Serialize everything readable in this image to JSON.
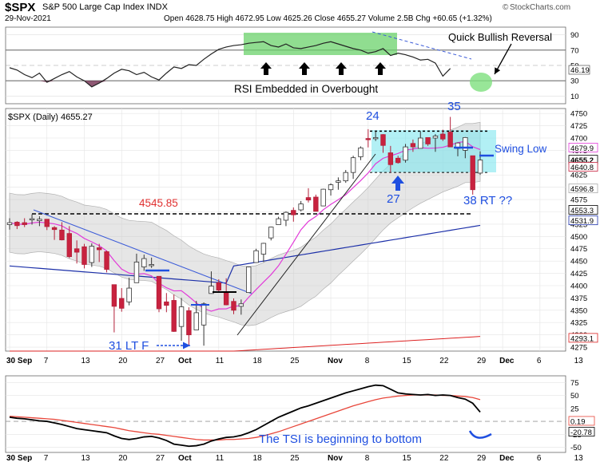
{
  "header": {
    "ticker": "$SPX",
    "name": "S&P 500 Large Cap Index INDX",
    "date": "29-Nov-2021",
    "ohlc": "Open 4628.75  High 4672.95  Low 4625.26  Close 4655.27  Volume 2.5B  Chg +60.65 (+1.32%)",
    "brand": "StockCharts.com",
    "brand_icon": "©"
  },
  "chart_data": [
    {
      "type": "line",
      "panel": "rsi",
      "ylim": [
        0,
        100
      ],
      "yticks": [
        10,
        30,
        50,
        70,
        90
      ],
      "value_box": "46.19",
      "annotations": [
        "RSI Embedded in Overbought",
        "Quick Bullish Reversal"
      ],
      "series": [
        {
          "values": [
            47,
            44,
            38,
            34,
            40,
            28,
            33,
            38,
            42,
            35,
            30,
            22,
            27,
            33,
            40,
            45,
            43,
            38,
            41,
            35,
            31,
            40,
            48,
            46,
            51,
            50,
            58,
            65,
            71,
            74,
            76,
            77,
            79,
            80,
            81,
            76,
            74,
            78,
            73,
            72,
            74,
            76,
            79,
            81,
            78,
            75,
            72,
            70,
            66,
            68,
            72,
            63,
            66,
            64,
            61,
            57,
            58,
            53,
            36,
            46
          ]
        }
      ]
    },
    {
      "type": "candlestick",
      "panel": "price",
      "legend": "$SPX (Daily) 4655.27",
      "ylim": [
        4267,
        4760
      ],
      "yticks": [
        4275,
        4300,
        4325,
        4350,
        4375,
        4400,
        4425,
        4450,
        4475,
        4500,
        4525,
        4550,
        4575,
        4600,
        4625,
        4650,
        4675,
        4700,
        4725,
        4750
      ],
      "x_labels": [
        "30 Sep",
        "7",
        "13",
        "20",
        "27",
        "Oct",
        "11",
        "18",
        "25",
        "Nov",
        "8",
        "15",
        "22",
        "29",
        "Dec",
        "6",
        "13"
      ],
      "value_boxes": [
        "4679.9",
        "4655.2",
        "4640.8",
        "4596.8",
        "4553.3",
        "4531.9",
        "4293.1"
      ],
      "annotations": [
        "4545.85",
        "24",
        "35",
        "27",
        "38 RT ??",
        "31 LT F",
        "Swing Low"
      ],
      "levels": {
        "resistance": 4545.85,
        "range_top": 4714,
        "range_bottom": 4630
      },
      "candles": [
        {
          "d": "Aug 30",
          "o": 4524,
          "h": 4537,
          "l": 4514,
          "c": 4528
        },
        {
          "d": "Aug 31",
          "o": 4529,
          "h": 4531,
          "l": 4515,
          "c": 4522
        },
        {
          "d": "Sep 1",
          "o": 4528,
          "h": 4537,
          "l": 4519,
          "c": 4524
        },
        {
          "d": "Sep 2",
          "o": 4534,
          "h": 4545,
          "l": 4524,
          "c": 4536
        },
        {
          "d": "Sep 3",
          "o": 4532,
          "h": 4541,
          "l": 4521,
          "c": 4535
        },
        {
          "d": "Sep 7",
          "o": 4535,
          "h": 4535,
          "l": 4513,
          "c": 4520
        },
        {
          "d": "Sep 8",
          "o": 4518,
          "h": 4521,
          "l": 4493,
          "c": 4514
        },
        {
          "d": "Sep 9",
          "o": 4513,
          "h": 4529,
          "l": 4492,
          "c": 4493
        },
        {
          "d": "Sep 10",
          "o": 4506,
          "h": 4521,
          "l": 4456,
          "c": 4459
        },
        {
          "d": "Sep 13",
          "o": 4475,
          "h": 4492,
          "l": 4445,
          "c": 4468
        },
        {
          "d": "Sep 14",
          "o": 4479,
          "h": 4485,
          "l": 4435,
          "c": 4443
        },
        {
          "d": "Sep 15",
          "o": 4447,
          "h": 4486,
          "l": 4438,
          "c": 4480
        },
        {
          "d": "Sep 16",
          "o": 4477,
          "h": 4485,
          "l": 4448,
          "c": 4473
        },
        {
          "d": "Sep 17",
          "o": 4469,
          "h": 4471,
          "l": 4427,
          "c": 4433
        },
        {
          "d": "Sep 20",
          "o": 4402,
          "h": 4402,
          "l": 4305,
          "c": 4358
        },
        {
          "d": "Sep 21",
          "o": 4374,
          "h": 4395,
          "l": 4347,
          "c": 4354
        },
        {
          "d": "Sep 22",
          "o": 4367,
          "h": 4416,
          "l": 4360,
          "c": 4395
        },
        {
          "d": "Sep 23",
          "o": 4406,
          "h": 4465,
          "l": 4406,
          "c": 4448
        },
        {
          "d": "Sep 24",
          "o": 4438,
          "h": 4463,
          "l": 4430,
          "c": 4455
        },
        {
          "d": "Sep 27",
          "o": 4442,
          "h": 4457,
          "l": 4436,
          "c": 4443
        },
        {
          "d": "Sep 28",
          "o": 4419,
          "h": 4419,
          "l": 4346,
          "c": 4353
        },
        {
          "d": "Sep 29",
          "o": 4367,
          "h": 4385,
          "l": 4346,
          "c": 4360
        },
        {
          "d": "Sep 30",
          "o": 4370,
          "h": 4382,
          "l": 4306,
          "c": 4307
        },
        {
          "d": "Oct 1",
          "o": 4317,
          "h": 4375,
          "l": 4288,
          "c": 4357
        },
        {
          "d": "Oct 4",
          "o": 4349,
          "h": 4356,
          "l": 4279,
          "c": 4300
        },
        {
          "d": "Oct 5",
          "o": 4310,
          "h": 4369,
          "l": 4310,
          "c": 4345
        },
        {
          "d": "Oct 6",
          "o": 4320,
          "h": 4366,
          "l": 4278,
          "c": 4363
        },
        {
          "d": "Oct 7",
          "o": 4384,
          "h": 4429,
          "l": 4384,
          "c": 4399
        },
        {
          "d": "Oct 8",
          "o": 4406,
          "h": 4413,
          "l": 4386,
          "c": 4391
        },
        {
          "d": "Oct 11",
          "o": 4385,
          "h": 4415,
          "l": 4360,
          "c": 4361
        },
        {
          "d": "Oct 12",
          "o": 4368,
          "h": 4374,
          "l": 4342,
          "c": 4350
        },
        {
          "d": "Oct 13",
          "o": 4358,
          "h": 4372,
          "l": 4341,
          "c": 4363
        },
        {
          "d": "Oct 14",
          "o": 4386,
          "h": 4439,
          "l": 4386,
          "c": 4438
        },
        {
          "d": "Oct 15",
          "o": 4447,
          "h": 4475,
          "l": 4447,
          "c": 4471
        },
        {
          "d": "Oct 18",
          "o": 4464,
          "h": 4487,
          "l": 4448,
          "c": 4486
        },
        {
          "d": "Oct 19",
          "o": 4497,
          "h": 4520,
          "l": 4492,
          "c": 4519
        },
        {
          "d": "Oct 20",
          "o": 4524,
          "h": 4540,
          "l": 4524,
          "c": 4536
        },
        {
          "d": "Oct 21",
          "o": 4533,
          "h": 4551,
          "l": 4521,
          "c": 4549
        },
        {
          "d": "Oct 22",
          "o": 4553,
          "h": 4559,
          "l": 4530,
          "c": 4544
        },
        {
          "d": "Oct 25",
          "o": 4554,
          "h": 4572,
          "l": 4551,
          "c": 4566
        },
        {
          "d": "Oct 26",
          "o": 4579,
          "h": 4598,
          "l": 4569,
          "c": 4574
        },
        {
          "d": "Oct 27",
          "o": 4580,
          "h": 4585,
          "l": 4551,
          "c": 4551
        },
        {
          "d": "Oct 28",
          "o": 4562,
          "h": 4597,
          "l": 4562,
          "c": 4596
        },
        {
          "d": "Oct 29",
          "o": 4595,
          "h": 4608,
          "l": 4583,
          "c": 4605
        },
        {
          "d": "Nov 1",
          "o": 4610,
          "h": 4620,
          "l": 4595,
          "c": 4613
        },
        {
          "d": "Nov 2",
          "o": 4613,
          "h": 4635,
          "l": 4609,
          "c": 4630
        },
        {
          "d": "Nov 3",
          "o": 4630,
          "h": 4664,
          "l": 4617,
          "c": 4660
        },
        {
          "d": "Nov 4",
          "o": 4662,
          "h": 4683,
          "l": 4655,
          "c": 4680
        },
        {
          "d": "Nov 5",
          "o": 4699,
          "h": 4718,
          "l": 4681,
          "c": 4697
        },
        {
          "d": "Nov 8",
          "o": 4701,
          "h": 4714,
          "l": 4694,
          "c": 4701
        },
        {
          "d": "Nov 9",
          "o": 4707,
          "h": 4708,
          "l": 4670,
          "c": 4685
        },
        {
          "d": "Nov 10",
          "o": 4670,
          "h": 4684,
          "l": 4630,
          "c": 4646
        },
        {
          "d": "Nov 11",
          "o": 4659,
          "h": 4664,
          "l": 4648,
          "c": 4650
        },
        {
          "d": "Nov 12",
          "o": 4655,
          "h": 4688,
          "l": 4650,
          "c": 4682
        },
        {
          "d": "Nov 15",
          "o": 4689,
          "h": 4697,
          "l": 4672,
          "c": 4682
        },
        {
          "d": "Nov 16",
          "o": 4679,
          "h": 4714,
          "l": 4679,
          "c": 4700
        },
        {
          "d": "Nov 17",
          "o": 4701,
          "h": 4701,
          "l": 4684,
          "c": 4688
        },
        {
          "d": "Nov 18",
          "o": 4700,
          "h": 4708,
          "l": 4672,
          "c": 4704
        },
        {
          "d": "Nov 19",
          "o": 4708,
          "h": 4717,
          "l": 4694,
          "c": 4698
        },
        {
          "d": "Nov 22",
          "o": 4712,
          "h": 4743,
          "l": 4682,
          "c": 4682
        },
        {
          "d": "Nov 23",
          "o": 4679,
          "h": 4691,
          "l": 4663,
          "c": 4690
        },
        {
          "d": "Nov 24",
          "o": 4675,
          "h": 4702,
          "l": 4659,
          "c": 4701
        },
        {
          "d": "Nov 26",
          "o": 4664,
          "h": 4664,
          "l": 4585,
          "c": 4595
        },
        {
          "d": "Nov 29",
          "o": 4628.75,
          "h": 4672.95,
          "l": 4625.26,
          "c": 4655.27
        }
      ]
    },
    {
      "type": "line",
      "panel": "tsi",
      "ylim": [
        -60,
        88
      ],
      "yticks": [
        75,
        50,
        25,
        -25,
        -50
      ],
      "value_boxes": [
        "0.19",
        "-20.78"
      ],
      "annotations": [
        "The TSI is beginning to bottom"
      ],
      "series": [
        {
          "color": "#000000",
          "values": [
            8,
            6,
            5,
            3,
            1,
            0,
            -3,
            -6,
            -10,
            -14,
            -16,
            -18,
            -20,
            -22,
            -28,
            -33,
            -35,
            -33,
            -30,
            -29,
            -32,
            -37,
            -44,
            -46,
            -48,
            -47,
            -44,
            -38,
            -34,
            -31,
            -30,
            -27,
            -22,
            -16,
            -8,
            0,
            8,
            14,
            20,
            26,
            30,
            35,
            40,
            45,
            50,
            55,
            59,
            63,
            67,
            70,
            69,
            62,
            55,
            53,
            52,
            51,
            52,
            50,
            51,
            50,
            46,
            43,
            35,
            18
          ]
        },
        {
          "color": "#e8463a",
          "values": [
            10,
            9,
            8,
            7,
            6,
            5,
            4,
            2,
            0,
            -2,
            -4,
            -6,
            -8,
            -10,
            -12,
            -15,
            -18,
            -20,
            -22,
            -24,
            -25,
            -27,
            -29,
            -31,
            -33,
            -35,
            -36,
            -36,
            -36,
            -35,
            -35,
            -34,
            -33,
            -31,
            -28,
            -24,
            -20,
            -15,
            -10,
            -5,
            0,
            5,
            10,
            15,
            20,
            25,
            30,
            34,
            38,
            42,
            45,
            47,
            49,
            50,
            51,
            51,
            51,
            51,
            50,
            50,
            49,
            48,
            46,
            42
          ]
        }
      ]
    }
  ]
}
